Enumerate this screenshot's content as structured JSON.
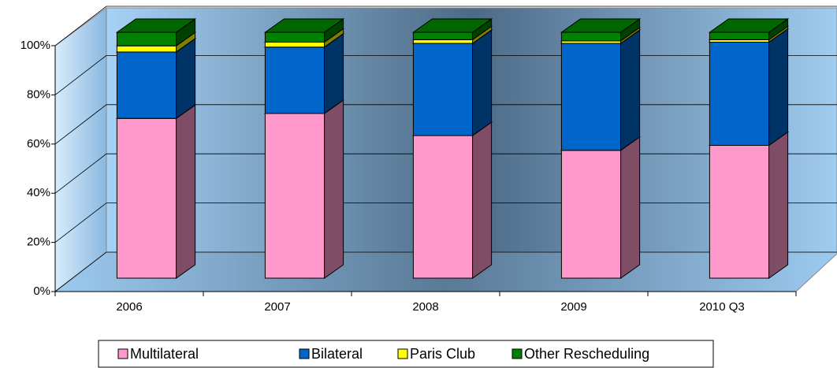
{
  "chart_data": {
    "type": "bar",
    "stacked": true,
    "categories": [
      "2006",
      "2007",
      "2008",
      "2009",
      "2010 Q3"
    ],
    "series": [
      {
        "name": "Multilateral",
        "color": "#ff99cc",
        "values": [
          65,
          67,
          58,
          52,
          54
        ]
      },
      {
        "name": "Bilateral",
        "color": "#0066cc",
        "values": [
          27,
          27,
          37.5,
          43.5,
          42
        ]
      },
      {
        "name": "Paris Club",
        "color": "#ffff00",
        "values": [
          2.5,
          2,
          1.5,
          1,
          1
        ]
      },
      {
        "name": "Other Rescheduling",
        "color": "#008000",
        "values": [
          5.5,
          4,
          3,
          3.5,
          3
        ]
      }
    ],
    "ylim": [
      0,
      100
    ],
    "yticks": [
      {
        "value": 0,
        "label": "0%"
      },
      {
        "value": 20,
        "label": "20%"
      },
      {
        "value": 40,
        "label": "40%"
      },
      {
        "value": 60,
        "label": "60%"
      },
      {
        "value": 80,
        "label": "80%"
      },
      {
        "value": 100,
        "label": "100%"
      }
    ],
    "grid": true,
    "legend": "bottom"
  }
}
